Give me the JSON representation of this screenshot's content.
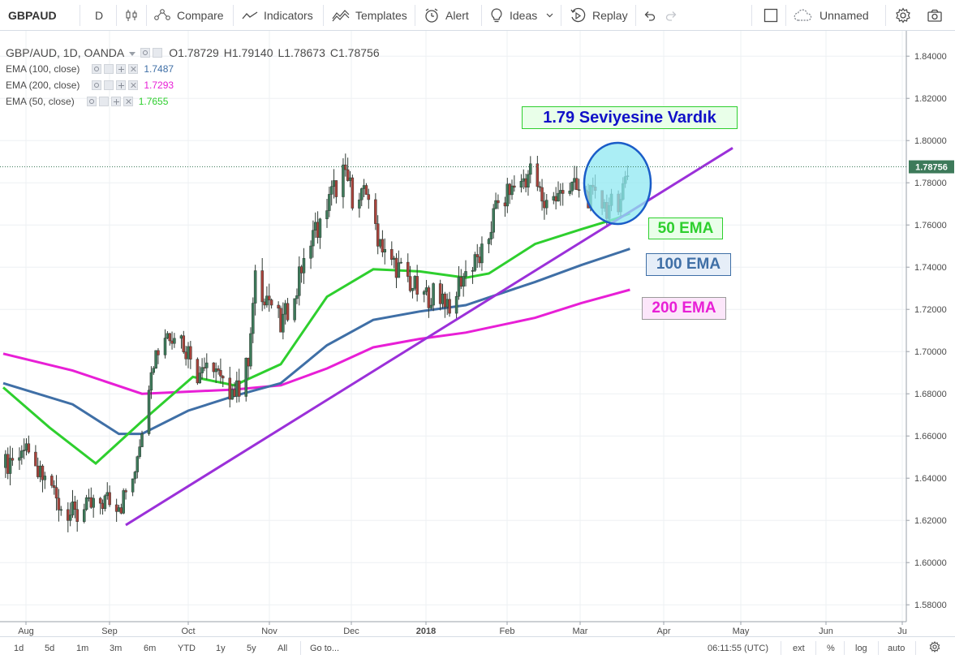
{
  "toolbar": {
    "symbol": "GBPAUD",
    "interval": "D",
    "compare": "Compare",
    "indicators": "Indicators",
    "templates": "Templates",
    "alert": "Alert",
    "ideas": "Ideas",
    "replay": "Replay",
    "layout_name": "Unnamed"
  },
  "legend": {
    "title": "GBP/AUD, 1D, OANDA",
    "open": "O1.78729",
    "high": "H1.79140",
    "low": "L1.78673",
    "close": "C1.78756",
    "ema100": {
      "label": "EMA (100, close)",
      "value": "1.7487",
      "color": "#3f6fa6"
    },
    "ema200": {
      "label": "EMA (200, close)",
      "value": "1.7293",
      "color": "#e81fd6"
    },
    "ema50": {
      "label": "EMA (50, close)",
      "value": "1.7655",
      "color": "#2ecf2e"
    }
  },
  "price_axis": {
    "ticks": [
      "1.84000",
      "1.82000",
      "1.80000",
      "1.78000",
      "1.76000",
      "1.74000",
      "1.72000",
      "1.70000",
      "1.68000",
      "1.66000",
      "1.64000",
      "1.62000",
      "1.60000",
      "1.58000"
    ],
    "current_price": "1.78756"
  },
  "time_axis": {
    "labels": [
      "Aug",
      "Sep",
      "Oct",
      "Nov",
      "Dec",
      "2018",
      "Feb",
      "Mar",
      "Apr",
      "May",
      "Jun",
      "Ju"
    ]
  },
  "annotations": {
    "headline": "1.79 Seviyesine Vardık",
    "ema50": "50 EMA",
    "ema100": "100 EMA",
    "ema200": "200 EMA"
  },
  "bottom": {
    "ranges": [
      "1d",
      "5d",
      "1m",
      "3m",
      "6m",
      "YTD",
      "1y",
      "5y",
      "All"
    ],
    "goto": "Go to...",
    "clock": "06:11:55 (UTC)",
    "ext": "ext",
    "pct": "%",
    "log": "log",
    "auto": "auto"
  },
  "colors": {
    "up": "#3d7a5a",
    "down": "#a9423b",
    "ema50": "#2ecf2e",
    "ema100": "#3f6fa6",
    "ema200": "#e81fd6",
    "trendline": "#9b30d9",
    "circle_fill": "#8fe8f2",
    "circle_stroke": "#1a5cc8"
  },
  "chart_data": {
    "type": "candlestick",
    "symbol": "GBP/AUD",
    "interval": "1D",
    "ylim": [
      1.572,
      1.852
    ],
    "last": {
      "open": 1.78729,
      "high": 1.7914,
      "low": 1.78673,
      "close": 1.78756
    },
    "ema_anchors": {
      "ema50": [
        [
          0,
          1.683
        ],
        [
          20,
          1.664
        ],
        [
          40,
          1.647
        ],
        [
          60,
          1.667
        ],
        [
          82,
          1.688
        ],
        [
          100,
          1.684
        ],
        [
          120,
          1.694
        ],
        [
          140,
          1.726
        ],
        [
          160,
          1.739
        ],
        [
          180,
          1.738
        ],
        [
          200,
          1.735
        ],
        [
          210,
          1.737
        ],
        [
          230,
          1.751
        ],
        [
          250,
          1.758
        ],
        [
          265,
          1.763
        ],
        [
          271,
          1.7655
        ]
      ],
      "ema100": [
        [
          0,
          1.685
        ],
        [
          30,
          1.675
        ],
        [
          50,
          1.661
        ],
        [
          60,
          1.661
        ],
        [
          80,
          1.672
        ],
        [
          100,
          1.679
        ],
        [
          120,
          1.685
        ],
        [
          140,
          1.703
        ],
        [
          160,
          1.715
        ],
        [
          180,
          1.719
        ],
        [
          200,
          1.722
        ],
        [
          230,
          1.733
        ],
        [
          250,
          1.741
        ],
        [
          271,
          1.7487
        ]
      ],
      "ema200": [
        [
          0,
          1.699
        ],
        [
          30,
          1.691
        ],
        [
          60,
          1.68
        ],
        [
          100,
          1.682
        ],
        [
          120,
          1.684
        ],
        [
          140,
          1.692
        ],
        [
          160,
          1.702
        ],
        [
          180,
          1.706
        ],
        [
          200,
          1.709
        ],
        [
          230,
          1.716
        ],
        [
          250,
          1.723
        ],
        [
          271,
          1.7293
        ]
      ]
    },
    "trendline": [
      [
        1.6178,
        1.7965
      ]
    ]
  }
}
